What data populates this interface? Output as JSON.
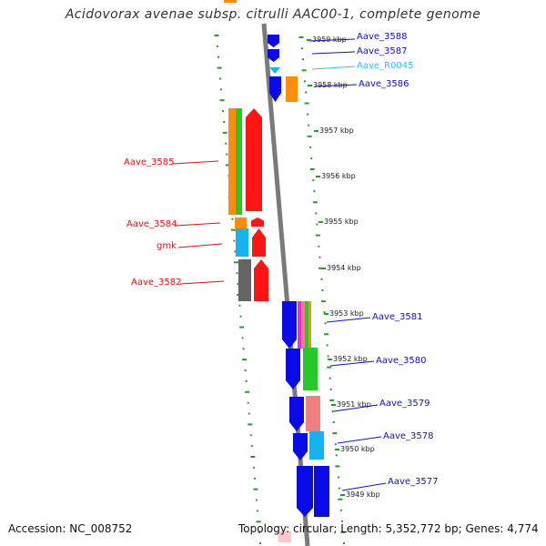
{
  "title": "Acidovorax avenae subsp. citrulli AAC00-1, complete genome",
  "footer": {
    "accession": "Accession: NC_008752",
    "topology": "Topology: circular; Length: 5,352,772 bp; Genes: 4,774"
  },
  "colors": {
    "blue": "#0a0ae6",
    "red": "#ff1414",
    "orange": "#ff8c0a",
    "green": "#28c828",
    "cyan": "#14b4f0",
    "gray": "#646464",
    "pink": "#f08080",
    "magenta": "#e632d2",
    "backbone": "#7a7a7a",
    "dotted": "#2b9a2b",
    "label_red": "#e01010",
    "label_blue": "#1010c8",
    "label_cyan": "#30c0f0"
  },
  "kbp_ticks": [
    "3959 kbp",
    "3958 kbp",
    "3957 kbp",
    "3956 kbp",
    "3955 kbp",
    "3954 kbp",
    "3953 kbp",
    "3952 kbp",
    "3951 kbp",
    "3950 kbp",
    "3949 kbp"
  ],
  "genes": [
    {
      "label": "Aave_3588",
      "strand": "+",
      "color": "blue"
    },
    {
      "label": "Aave_3587",
      "strand": "+",
      "color": "blue"
    },
    {
      "label": "Aave_R0045",
      "strand": "+",
      "color": "cyan"
    },
    {
      "label": "Aave_3586",
      "strand": "+",
      "color": "blue"
    },
    {
      "label": "Aave_3585",
      "strand": "-",
      "color": "red"
    },
    {
      "label": "Aave_3584",
      "strand": "-",
      "color": "red"
    },
    {
      "label": "gmk",
      "strand": "-",
      "color": "red"
    },
    {
      "label": "Aave_3582",
      "strand": "-",
      "color": "red"
    },
    {
      "label": "Aave_3581",
      "strand": "+",
      "color": "blue"
    },
    {
      "label": "Aave_3580",
      "strand": "+",
      "color": "blue"
    },
    {
      "label": "Aave_3579",
      "strand": "+",
      "color": "blue"
    },
    {
      "label": "Aave_3578",
      "strand": "+",
      "color": "blue"
    },
    {
      "label": "Aave_3577",
      "strand": "+",
      "color": "blue"
    }
  ]
}
